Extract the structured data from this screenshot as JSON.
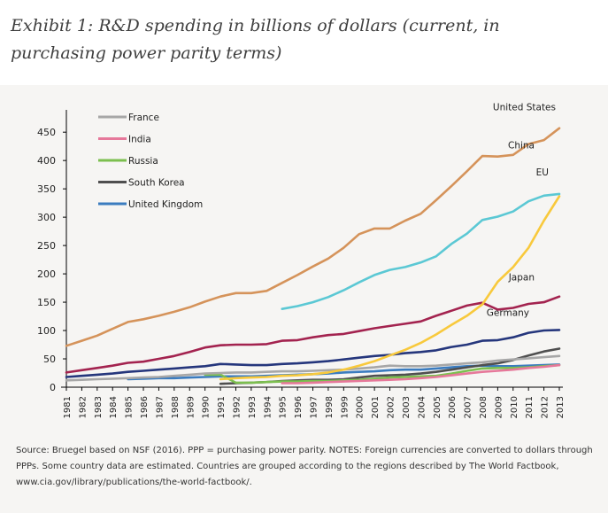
{
  "exhibit_title": "Exhibit 1: R&D spending in billions of dollars (current, in purchasing power parity terms)",
  "source_note": "Source: Bruegel based on NSF (2016). PPP = purchasing power parity. NOTES: Foreign currencies are converted to dollars through PPPs. Some country data are estimated. Countries are grouped according to the regions described by The World Factbook, www.cia.gov/library/publications/the-world-factbook/.",
  "chart_data": {
    "type": "line",
    "title": "",
    "xlabel": "",
    "ylabel": "",
    "x": [
      1981,
      1982,
      1983,
      1984,
      1985,
      1986,
      1987,
      1988,
      1989,
      1990,
      1991,
      1992,
      1993,
      1994,
      1995,
      1996,
      1997,
      1998,
      1999,
      2000,
      2001,
      2002,
      2003,
      2004,
      2005,
      2006,
      2007,
      2008,
      2009,
      2010,
      2011,
      2012,
      2013
    ],
    "ylim": [
      0,
      480
    ],
    "yticks": [
      0,
      50,
      100,
      150,
      200,
      250,
      300,
      350,
      400,
      450
    ],
    "grid": false,
    "legend_position": "top-left",
    "legend": [
      "France",
      "India",
      "Russia",
      "South Korea",
      "United Kingdom"
    ],
    "series": [
      {
        "name": "United States",
        "color": "#d5935a",
        "labeled": true,
        "values": [
          73,
          82,
          91,
          103,
          115,
          120,
          126,
          133,
          141,
          151,
          160,
          166,
          166,
          170,
          184,
          198,
          213,
          227,
          246,
          270,
          280,
          280,
          294,
          306,
          330,
          355,
          381,
          408,
          407,
          410,
          429,
          436,
          457
        ]
      },
      {
        "name": "EU",
        "color": "#5bc8d4",
        "labeled": true,
        "values": [
          null,
          null,
          null,
          null,
          null,
          null,
          null,
          null,
          null,
          null,
          null,
          null,
          null,
          null,
          138,
          143,
          150,
          159,
          171,
          185,
          198,
          207,
          212,
          220,
          231,
          253,
          271,
          295,
          301,
          310,
          328,
          338,
          341
        ]
      },
      {
        "name": "China",
        "color": "#f8c93c",
        "labeled": true,
        "values": [
          null,
          null,
          null,
          null,
          null,
          null,
          null,
          null,
          null,
          null,
          14,
          16,
          17,
          18,
          20,
          21,
          23,
          26,
          31,
          38,
          46,
          56,
          66,
          78,
          93,
          110,
          126,
          146,
          186,
          212,
          246,
          294,
          337
        ]
      },
      {
        "name": "Japan",
        "color": "#a3234f",
        "labeled": true,
        "values": [
          26,
          30,
          34,
          38,
          43,
          45,
          50,
          55,
          62,
          70,
          74,
          75,
          75,
          76,
          82,
          83,
          88,
          92,
          94,
          99,
          104,
          108,
          112,
          116,
          126,
          135,
          144,
          149,
          137,
          140,
          147,
          150,
          160
        ]
      },
      {
        "name": "Germany",
        "color": "#25367c",
        "labeled": true,
        "values": [
          18,
          20,
          22,
          24,
          27,
          29,
          31,
          33,
          35,
          37,
          41,
          40,
          39,
          39,
          41,
          42,
          44,
          46,
          49,
          52,
          55,
          57,
          60,
          62,
          65,
          71,
          75,
          82,
          83,
          88,
          96,
          100,
          101
        ]
      },
      {
        "name": "France",
        "color": "#a7a7a7",
        "labeled": false,
        "values": [
          12,
          13,
          14,
          15,
          16,
          17,
          18,
          20,
          22,
          24,
          25,
          26,
          26,
          27,
          28,
          28,
          29,
          30,
          31,
          33,
          35,
          38,
          37,
          37,
          38,
          40,
          42,
          44,
          47,
          49,
          51,
          53,
          55
        ]
      },
      {
        "name": "India",
        "color": "#e6789a",
        "labeled": false,
        "values": [
          null,
          null,
          null,
          null,
          null,
          null,
          null,
          null,
          null,
          null,
          null,
          null,
          null,
          null,
          7,
          7,
          8,
          9,
          10,
          11,
          12,
          13,
          14,
          16,
          18,
          21,
          24,
          27,
          29,
          31,
          34,
          36,
          39
        ]
      },
      {
        "name": "Russia",
        "color": "#7cbf4f",
        "labeled": false,
        "values": [
          null,
          null,
          null,
          null,
          null,
          null,
          null,
          null,
          null,
          22,
          22,
          8,
          8,
          9,
          10,
          10,
          11,
          11,
          12,
          13,
          15,
          17,
          18,
          19,
          20,
          24,
          29,
          33,
          34,
          34,
          35,
          37,
          39
        ]
      },
      {
        "name": "South Korea",
        "color": "#4f4f4f",
        "labeled": false,
        "values": [
          null,
          null,
          null,
          null,
          null,
          null,
          null,
          null,
          null,
          null,
          6,
          7,
          8,
          9,
          11,
          12,
          13,
          13,
          14,
          17,
          20,
          21,
          22,
          24,
          27,
          31,
          35,
          39,
          42,
          48,
          56,
          63,
          68
        ]
      },
      {
        "name": "United Kingdom",
        "color": "#3b7cbf",
        "labeled": false,
        "values": [
          null,
          null,
          null,
          null,
          14,
          15,
          16,
          16,
          17,
          18,
          19,
          19,
          19,
          20,
          21,
          22,
          23,
          24,
          26,
          27,
          28,
          30,
          31,
          31,
          33,
          35,
          37,
          38,
          37,
          37,
          38,
          39,
          40
        ]
      }
    ]
  }
}
